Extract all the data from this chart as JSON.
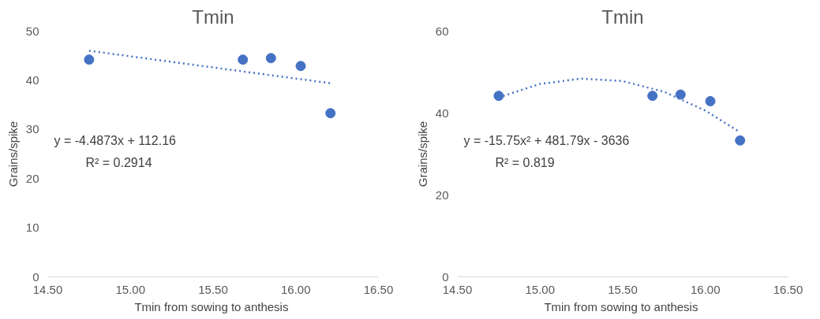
{
  "chart_data": [
    {
      "type": "scatter",
      "title": "Tmin",
      "xlabel": "Tmin from  sowing to anthesis",
      "ylabel": "Grains/spike",
      "xlim": [
        14.5,
        16.5
      ],
      "ylim": [
        0,
        50
      ],
      "xticks": [
        {
          "value": 14.5,
          "label": "14.50"
        },
        {
          "value": 15,
          "label": "15.00"
        },
        {
          "value": 15.5,
          "label": "15.50"
        },
        {
          "value": 16,
          "label": "16.00"
        },
        {
          "value": 16.5,
          "label": "16.50"
        }
      ],
      "yticks": [
        0,
        10,
        20,
        30,
        40,
        50
      ],
      "grid": false,
      "marker": "circle",
      "series": [
        {
          "color": "#4472c4",
          "x": [
            14.75,
            15.68,
            15.85,
            16.03,
            16.21
          ],
          "values": [
            44.2,
            44.2,
            44.5,
            42.9,
            33.3
          ]
        },
        {
          "type": "line",
          "color": "#4472c4",
          "line_style": "dotted",
          "marker": "none",
          "x": [
            14.75,
            16.21
          ],
          "values": [
            46,
            39.4
          ]
        }
      ],
      "annotations": [
        "y = -4.4873x + 112.16",
        "R² = 0.2914"
      ]
    },
    {
      "type": "scatter",
      "title": "Tmin",
      "xlabel": "Tmin from  sowing to anthesis",
      "ylabel": "Grains/spike",
      "xlim": [
        14.5,
        16.5
      ],
      "ylim": [
        0,
        60
      ],
      "xticks": [
        {
          "value": 14.5,
          "label": "14.50"
        },
        {
          "value": 15,
          "label": "15.00"
        },
        {
          "value": 15.5,
          "label": "15.50"
        },
        {
          "value": 16,
          "label": "16.00"
        },
        {
          "value": 16.5,
          "label": "16.50"
        }
      ],
      "yticks": [
        0,
        20,
        40,
        60
      ],
      "grid": false,
      "marker": "circle",
      "series": [
        {
          "color": "#4472c4",
          "x": [
            14.75,
            15.68,
            15.85,
            16.03,
            16.21
          ],
          "values": [
            44.2,
            44.2,
            44.5,
            42.9,
            33.3
          ]
        },
        {
          "type": "line",
          "color": "#4472c4",
          "line_style": "dotted",
          "marker": "none",
          "x": [
            14.75,
            15.0,
            15.25,
            15.5,
            15.75,
            16.0,
            16.21
          ],
          "values": [
            43.8,
            47.1,
            48.4,
            47.8,
            45.2,
            40.6,
            35.3
          ]
        }
      ],
      "annotations": [
        "y = -15.75x² + 481.79x - 3636",
        "R² = 0.819"
      ]
    }
  ]
}
